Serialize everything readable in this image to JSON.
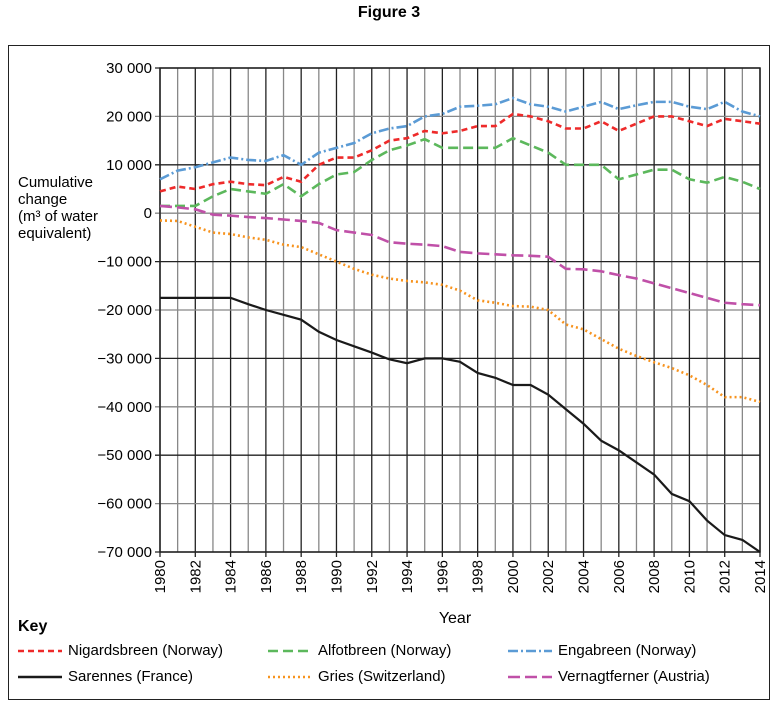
{
  "figure_title": "Figure 3",
  "chart_data": {
    "type": "line",
    "title": "Figure 3",
    "xlabel": "Year",
    "ylabel": "Cumulative change (m3 of water equivalent)",
    "ylabel_lines": [
      "Cumulative",
      "change",
      "(m³ of water",
      "equivalent)"
    ],
    "xlim": [
      1980,
      2014
    ],
    "ylim": [
      -70000,
      30000
    ],
    "yticks": [
      30000,
      20000,
      10000,
      0,
      -10000,
      -20000,
      -30000,
      -40000,
      -50000,
      -60000,
      -70000
    ],
    "ytick_labels": [
      "30 000",
      "20 000",
      "10 000",
      "0",
      "−10 000",
      "−20 000",
      "−30 000",
      "−40 000",
      "−50 000",
      "−60 000",
      "−70 000"
    ],
    "xticks": [
      1980,
      1982,
      1984,
      1986,
      1988,
      1990,
      1992,
      1994,
      1996,
      1998,
      2000,
      2002,
      2004,
      2006,
      2008,
      2010,
      2012,
      2014
    ],
    "grid": true,
    "legend_title": "Key",
    "legend_placement": "bottom",
    "x": [
      1980,
      1981,
      1982,
      1983,
      1984,
      1985,
      1986,
      1987,
      1988,
      1989,
      1990,
      1991,
      1992,
      1993,
      1994,
      1995,
      1996,
      1997,
      1998,
      1999,
      2000,
      2001,
      2002,
      2003,
      2004,
      2005,
      2006,
      2007,
      2008,
      2009,
      2010,
      2011,
      2012,
      2013,
      2014
    ],
    "series": [
      {
        "name": "Nigardsbreen (Norway)",
        "color": "#ee2a2a",
        "dash": "6,4",
        "values": [
          4500,
          5500,
          5000,
          6000,
          6500,
          6000,
          5800,
          7500,
          6500,
          10000,
          11500,
          11500,
          13000,
          15000,
          15500,
          17000,
          16500,
          17000,
          18000,
          18000,
          20500,
          20000,
          19000,
          17500,
          17500,
          19000,
          17000,
          18500,
          20000,
          20000,
          19000,
          18000,
          19500,
          19000,
          18500
        ]
      },
      {
        "name": "Alfotbreen (Norway)",
        "color": "#5cb85c",
        "dash": "10,5",
        "values": [
          1500,
          1500,
          1500,
          3500,
          5000,
          4500,
          4000,
          6000,
          3500,
          6000,
          8000,
          8500,
          11000,
          13000,
          14000,
          15300,
          13500,
          13500,
          13500,
          13500,
          15500,
          14000,
          12500,
          10000,
          10000,
          10000,
          7000,
          8000,
          9000,
          9000,
          7000,
          6300,
          7500,
          6500,
          5000
        ]
      },
      {
        "name": "Engabreen (Norway)",
        "color": "#5b9bd5",
        "dash": "10,3,2,3",
        "values": [
          7000,
          8800,
          9500,
          10500,
          11500,
          11000,
          10800,
          12000,
          10000,
          12500,
          13500,
          14500,
          16500,
          17500,
          18000,
          20000,
          20500,
          22000,
          22200,
          22500,
          23800,
          22500,
          22000,
          21000,
          22000,
          23000,
          21500,
          22300,
          23000,
          23000,
          22000,
          21500,
          23000,
          21000,
          20000
        ]
      },
      {
        "name": "Sarennes (France)",
        "color": "#1a1a1a",
        "dash": "",
        "values": [
          -17500,
          -17500,
          -17500,
          -17500,
          -17500,
          -18800,
          -20000,
          -21000,
          -22000,
          -24500,
          -26200,
          -27500,
          -28800,
          -30200,
          -31000,
          -30000,
          -30000,
          -30700,
          -33000,
          -34000,
          -35500,
          -35500,
          -37500,
          -40500,
          -43500,
          -47000,
          -49000,
          -51500,
          -54000,
          -58000,
          -59500,
          -63500,
          -66500,
          -67500,
          -70000
        ]
      },
      {
        "name": "Gries (Switzerland)",
        "color": "#f7931e",
        "dash": "2,3",
        "values": [
          -1500,
          -1600,
          -2800,
          -4000,
          -4300,
          -5000,
          -5500,
          -6500,
          -7000,
          -8500,
          -10000,
          -11500,
          -12700,
          -13500,
          -14000,
          -14300,
          -14800,
          -16000,
          -18000,
          -18500,
          -19200,
          -19300,
          -20000,
          -23000,
          -24000,
          -26000,
          -28000,
          -29500,
          -30800,
          -32000,
          -33500,
          -35500,
          -38000,
          -38000,
          -39000
        ]
      },
      {
        "name": "Vernagtferner (Austria)",
        "color": "#c050a8",
        "dash": "12,5",
        "values": [
          1500,
          1200,
          800,
          -300,
          -500,
          -800,
          -1000,
          -1300,
          -1600,
          -2000,
          -3500,
          -4000,
          -4500,
          -6000,
          -6300,
          -6500,
          -6800,
          -8000,
          -8300,
          -8500,
          -8700,
          -8800,
          -9000,
          -11500,
          -11600,
          -12000,
          -12800,
          -13500,
          -14500,
          -15500,
          -16500,
          -17500,
          -18500,
          -18800,
          -19000
        ]
      }
    ]
  }
}
